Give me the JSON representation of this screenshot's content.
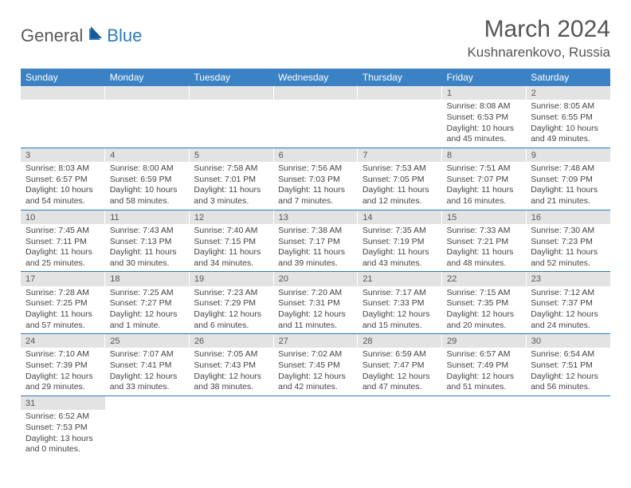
{
  "logo": {
    "general": "General",
    "blue": "Blue"
  },
  "title": "March 2024",
  "location": "Kushnarenkovo, Russia",
  "colors": {
    "header_bg": "#3a82c4",
    "header_text": "#ffffff",
    "daynum_bg": "#e3e3e3",
    "border": "#2b7bbf",
    "text": "#444444"
  },
  "weekdays": [
    "Sunday",
    "Monday",
    "Tuesday",
    "Wednesday",
    "Thursday",
    "Friday",
    "Saturday"
  ],
  "weeks": [
    [
      null,
      null,
      null,
      null,
      null,
      {
        "n": "1",
        "sr": "Sunrise: 8:08 AM",
        "ss": "Sunset: 6:53 PM",
        "dl": "Daylight: 10 hours and 45 minutes."
      },
      {
        "n": "2",
        "sr": "Sunrise: 8:05 AM",
        "ss": "Sunset: 6:55 PM",
        "dl": "Daylight: 10 hours and 49 minutes."
      }
    ],
    [
      {
        "n": "3",
        "sr": "Sunrise: 8:03 AM",
        "ss": "Sunset: 6:57 PM",
        "dl": "Daylight: 10 hours and 54 minutes."
      },
      {
        "n": "4",
        "sr": "Sunrise: 8:00 AM",
        "ss": "Sunset: 6:59 PM",
        "dl": "Daylight: 10 hours and 58 minutes."
      },
      {
        "n": "5",
        "sr": "Sunrise: 7:58 AM",
        "ss": "Sunset: 7:01 PM",
        "dl": "Daylight: 11 hours and 3 minutes."
      },
      {
        "n": "6",
        "sr": "Sunrise: 7:56 AM",
        "ss": "Sunset: 7:03 PM",
        "dl": "Daylight: 11 hours and 7 minutes."
      },
      {
        "n": "7",
        "sr": "Sunrise: 7:53 AM",
        "ss": "Sunset: 7:05 PM",
        "dl": "Daylight: 11 hours and 12 minutes."
      },
      {
        "n": "8",
        "sr": "Sunrise: 7:51 AM",
        "ss": "Sunset: 7:07 PM",
        "dl": "Daylight: 11 hours and 16 minutes."
      },
      {
        "n": "9",
        "sr": "Sunrise: 7:48 AM",
        "ss": "Sunset: 7:09 PM",
        "dl": "Daylight: 11 hours and 21 minutes."
      }
    ],
    [
      {
        "n": "10",
        "sr": "Sunrise: 7:45 AM",
        "ss": "Sunset: 7:11 PM",
        "dl": "Daylight: 11 hours and 25 minutes."
      },
      {
        "n": "11",
        "sr": "Sunrise: 7:43 AM",
        "ss": "Sunset: 7:13 PM",
        "dl": "Daylight: 11 hours and 30 minutes."
      },
      {
        "n": "12",
        "sr": "Sunrise: 7:40 AM",
        "ss": "Sunset: 7:15 PM",
        "dl": "Daylight: 11 hours and 34 minutes."
      },
      {
        "n": "13",
        "sr": "Sunrise: 7:38 AM",
        "ss": "Sunset: 7:17 PM",
        "dl": "Daylight: 11 hours and 39 minutes."
      },
      {
        "n": "14",
        "sr": "Sunrise: 7:35 AM",
        "ss": "Sunset: 7:19 PM",
        "dl": "Daylight: 11 hours and 43 minutes."
      },
      {
        "n": "15",
        "sr": "Sunrise: 7:33 AM",
        "ss": "Sunset: 7:21 PM",
        "dl": "Daylight: 11 hours and 48 minutes."
      },
      {
        "n": "16",
        "sr": "Sunrise: 7:30 AM",
        "ss": "Sunset: 7:23 PM",
        "dl": "Daylight: 11 hours and 52 minutes."
      }
    ],
    [
      {
        "n": "17",
        "sr": "Sunrise: 7:28 AM",
        "ss": "Sunset: 7:25 PM",
        "dl": "Daylight: 11 hours and 57 minutes."
      },
      {
        "n": "18",
        "sr": "Sunrise: 7:25 AM",
        "ss": "Sunset: 7:27 PM",
        "dl": "Daylight: 12 hours and 1 minute."
      },
      {
        "n": "19",
        "sr": "Sunrise: 7:23 AM",
        "ss": "Sunset: 7:29 PM",
        "dl": "Daylight: 12 hours and 6 minutes."
      },
      {
        "n": "20",
        "sr": "Sunrise: 7:20 AM",
        "ss": "Sunset: 7:31 PM",
        "dl": "Daylight: 12 hours and 11 minutes."
      },
      {
        "n": "21",
        "sr": "Sunrise: 7:17 AM",
        "ss": "Sunset: 7:33 PM",
        "dl": "Daylight: 12 hours and 15 minutes."
      },
      {
        "n": "22",
        "sr": "Sunrise: 7:15 AM",
        "ss": "Sunset: 7:35 PM",
        "dl": "Daylight: 12 hours and 20 minutes."
      },
      {
        "n": "23",
        "sr": "Sunrise: 7:12 AM",
        "ss": "Sunset: 7:37 PM",
        "dl": "Daylight: 12 hours and 24 minutes."
      }
    ],
    [
      {
        "n": "24",
        "sr": "Sunrise: 7:10 AM",
        "ss": "Sunset: 7:39 PM",
        "dl": "Daylight: 12 hours and 29 minutes."
      },
      {
        "n": "25",
        "sr": "Sunrise: 7:07 AM",
        "ss": "Sunset: 7:41 PM",
        "dl": "Daylight: 12 hours and 33 minutes."
      },
      {
        "n": "26",
        "sr": "Sunrise: 7:05 AM",
        "ss": "Sunset: 7:43 PM",
        "dl": "Daylight: 12 hours and 38 minutes."
      },
      {
        "n": "27",
        "sr": "Sunrise: 7:02 AM",
        "ss": "Sunset: 7:45 PM",
        "dl": "Daylight: 12 hours and 42 minutes."
      },
      {
        "n": "28",
        "sr": "Sunrise: 6:59 AM",
        "ss": "Sunset: 7:47 PM",
        "dl": "Daylight: 12 hours and 47 minutes."
      },
      {
        "n": "29",
        "sr": "Sunrise: 6:57 AM",
        "ss": "Sunset: 7:49 PM",
        "dl": "Daylight: 12 hours and 51 minutes."
      },
      {
        "n": "30",
        "sr": "Sunrise: 6:54 AM",
        "ss": "Sunset: 7:51 PM",
        "dl": "Daylight: 12 hours and 56 minutes."
      }
    ],
    [
      {
        "n": "31",
        "sr": "Sunrise: 6:52 AM",
        "ss": "Sunset: 7:53 PM",
        "dl": "Daylight: 13 hours and 0 minutes."
      },
      null,
      null,
      null,
      null,
      null,
      null
    ]
  ]
}
